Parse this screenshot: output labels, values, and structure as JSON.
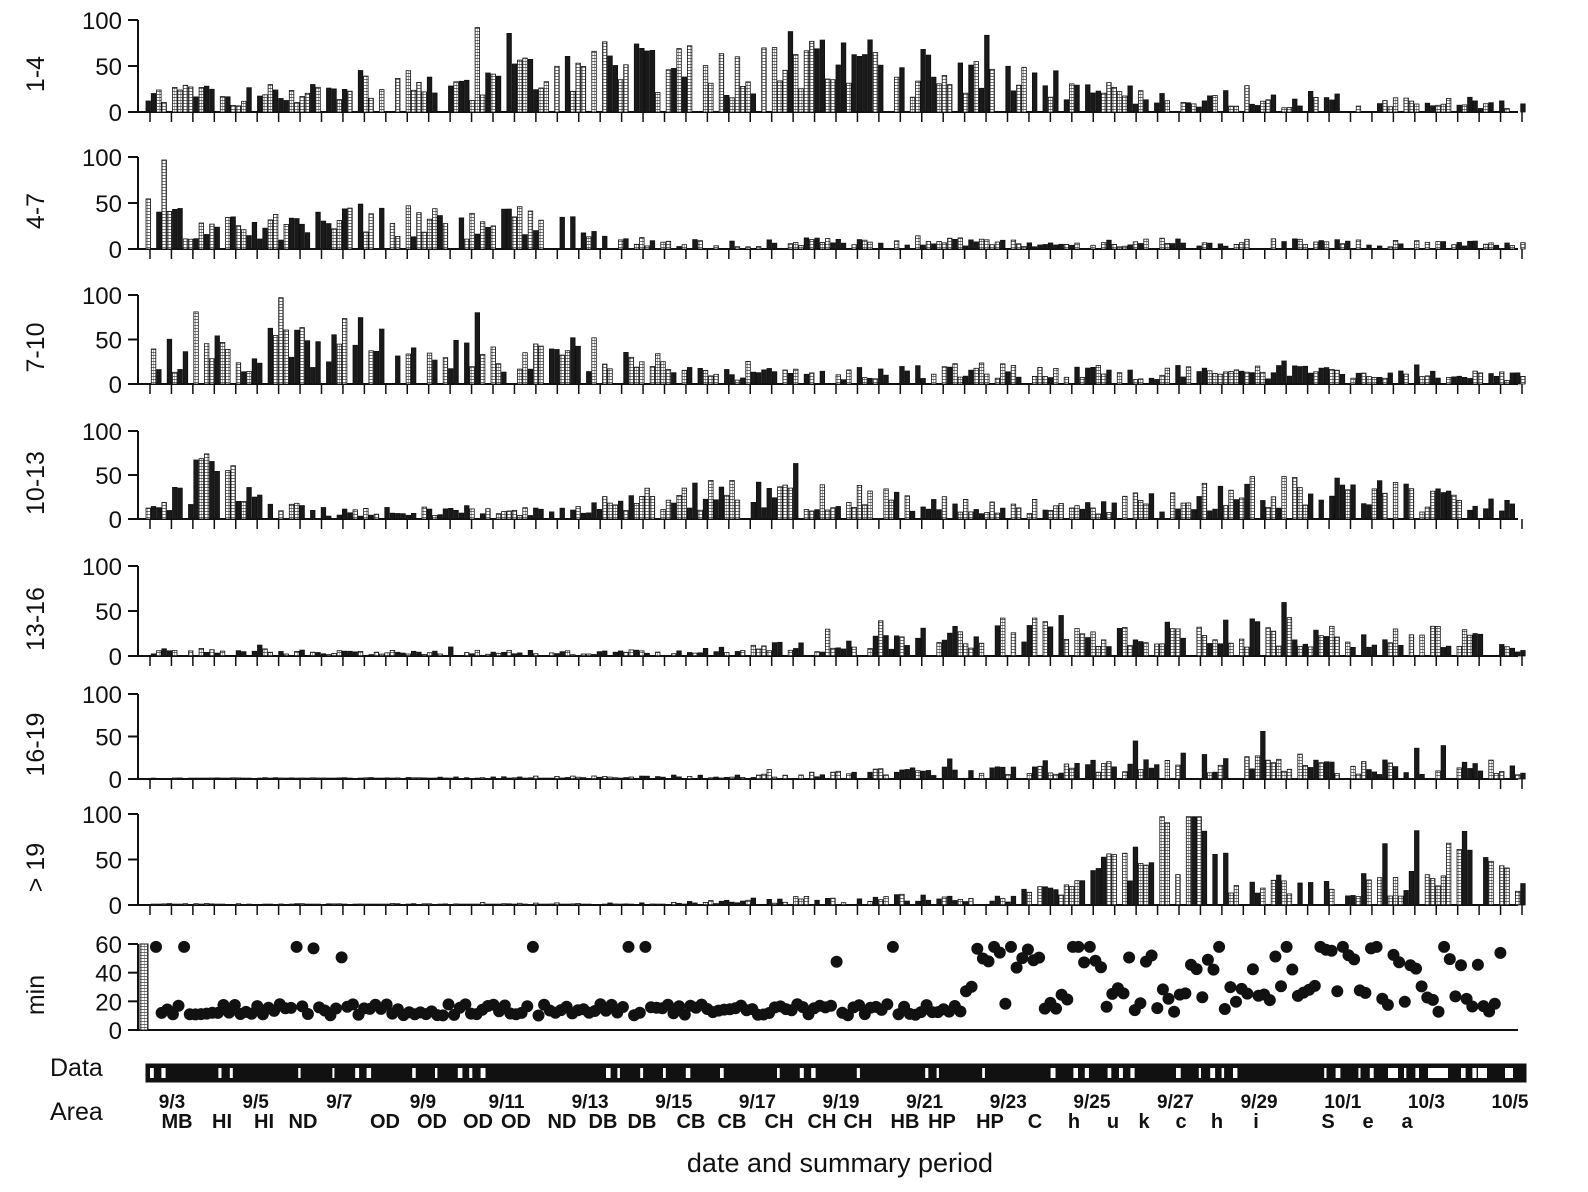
{
  "chart_data": {
    "type": "bar",
    "xlabel": "date and summary period",
    "x_ticks_count": 65,
    "bars_per_panel": 260,
    "panels": [
      {
        "name": "1-4",
        "ylim": [
          0,
          100
        ],
        "yticks": [
          "100",
          "50",
          "0"
        ],
        "profile": [
          [
            0,
            16
          ],
          [
            10,
            20
          ],
          [
            20,
            18
          ],
          [
            40,
            28
          ],
          [
            60,
            30
          ],
          [
            80,
            45
          ],
          [
            95,
            55
          ],
          [
            110,
            42
          ],
          [
            130,
            50
          ],
          [
            150,
            40
          ],
          [
            170,
            28
          ],
          [
            190,
            15
          ],
          [
            210,
            12
          ],
          [
            230,
            10
          ],
          [
            259,
            10
          ]
        ]
      },
      {
        "name": "4-7",
        "ylim": [
          0,
          100
        ],
        "yticks": [
          "100",
          "50",
          "0"
        ],
        "profile": [
          [
            0,
            45
          ],
          [
            10,
            18
          ],
          [
            20,
            25
          ],
          [
            40,
            32
          ],
          [
            60,
            26
          ],
          [
            75,
            30
          ],
          [
            90,
            8
          ],
          [
            110,
            6
          ],
          [
            130,
            8
          ],
          [
            150,
            10
          ],
          [
            170,
            4
          ],
          [
            190,
            8
          ],
          [
            210,
            7
          ],
          [
            230,
            6
          ],
          [
            259,
            5
          ]
        ]
      },
      {
        "name": "7-10",
        "ylim": [
          0,
          100
        ],
        "yticks": [
          "100",
          "50",
          "0"
        ],
        "profile": [
          [
            0,
            30
          ],
          [
            10,
            35
          ],
          [
            20,
            38
          ],
          [
            40,
            50
          ],
          [
            60,
            28
          ],
          [
            75,
            30
          ],
          [
            85,
            40
          ],
          [
            100,
            14
          ],
          [
            120,
            10
          ],
          [
            140,
            12
          ],
          [
            160,
            16
          ],
          [
            180,
            14
          ],
          [
            200,
            14
          ],
          [
            220,
            12
          ],
          [
            259,
            8
          ]
        ]
      },
      {
        "name": "10-13",
        "ylim": [
          0,
          100
        ],
        "yticks": [
          "100",
          "50",
          "0"
        ],
        "profile": [
          [
            0,
            10
          ],
          [
            10,
            50
          ],
          [
            20,
            30
          ],
          [
            30,
            8
          ],
          [
            60,
            10
          ],
          [
            80,
            12
          ],
          [
            95,
            25
          ],
          [
            110,
            28
          ],
          [
            130,
            25
          ],
          [
            150,
            16
          ],
          [
            170,
            10
          ],
          [
            190,
            20
          ],
          [
            210,
            32
          ],
          [
            230,
            28
          ],
          [
            259,
            12
          ]
        ]
      },
      {
        "name": "13-16",
        "ylim": [
          0,
          100
        ],
        "yticks": [
          "100",
          "50",
          "0"
        ],
        "profile": [
          [
            0,
            4
          ],
          [
            10,
            8
          ],
          [
            30,
            4
          ],
          [
            60,
            4
          ],
          [
            90,
            4
          ],
          [
            110,
            8
          ],
          [
            130,
            12
          ],
          [
            150,
            22
          ],
          [
            170,
            30
          ],
          [
            190,
            22
          ],
          [
            200,
            26
          ],
          [
            210,
            28
          ],
          [
            230,
            16
          ],
          [
            245,
            25
          ],
          [
            259,
            10
          ]
        ]
      },
      {
        "name": "16-19",
        "ylim": [
          0,
          100
        ],
        "yticks": [
          "100",
          "50",
          "0"
        ],
        "profile": [
          [
            0,
            1
          ],
          [
            40,
            1
          ],
          [
            80,
            2
          ],
          [
            100,
            3
          ],
          [
            120,
            4
          ],
          [
            140,
            8
          ],
          [
            160,
            10
          ],
          [
            170,
            14
          ],
          [
            190,
            18
          ],
          [
            210,
            20
          ],
          [
            230,
            14
          ],
          [
            250,
            16
          ],
          [
            259,
            12
          ]
        ]
      },
      {
        "name": "> 19",
        "ylim": [
          0,
          100
        ],
        "yticks": [
          "100",
          "50",
          "0"
        ],
        "profile": [
          [
            0,
            1
          ],
          [
            60,
            1
          ],
          [
            100,
            2
          ],
          [
            120,
            6
          ],
          [
            140,
            8
          ],
          [
            160,
            6
          ],
          [
            175,
            20
          ],
          [
            185,
            45
          ],
          [
            195,
            80
          ],
          [
            205,
            30
          ],
          [
            220,
            15
          ],
          [
            240,
            30
          ],
          [
            250,
            55
          ],
          [
            259,
            18
          ]
        ]
      }
    ],
    "min_panel": {
      "name": "min",
      "ylim": [
        0,
        60
      ],
      "yticks": [
        "60",
        "40",
        "20",
        "0"
      ],
      "points": 240
    },
    "data_row_label": "Data",
    "area_row_label": "Area",
    "date_labels": [
      "9/3",
      "9/5",
      "9/7",
      "9/9",
      "9/11",
      "9/13",
      "9/15",
      "9/17",
      "9/19",
      "9/21",
      "9/23",
      "9/25",
      "9/27",
      "9/29",
      "10/1",
      "10/3",
      "10/5"
    ],
    "area_labels": [
      "MB",
      "HI",
      "HI",
      "ND",
      "OD",
      "OD",
      "OD",
      "OD",
      "ND",
      "DB",
      "DB",
      "CB",
      "CB",
      "CH",
      "CH",
      "CH",
      "HB",
      "HP",
      "HP",
      "C",
      "h",
      "u",
      "k",
      "c",
      "h",
      "i",
      "S",
      "e",
      "a"
    ]
  }
}
